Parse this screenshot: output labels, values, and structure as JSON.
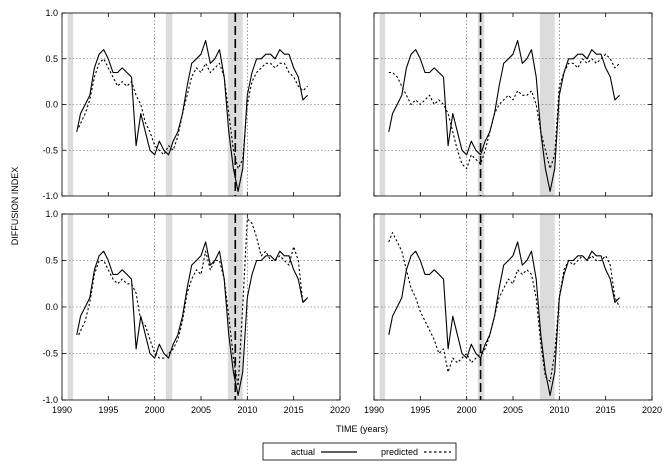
{
  "figure": {
    "xlabel": "TIME (years)",
    "ylabel": "DIFFUSION INDEX",
    "legend": {
      "actual": "actual",
      "predicted": "predicted"
    }
  },
  "chart_data": [
    {
      "panel": "top-left",
      "type": "line",
      "xlim": [
        1990,
        2020
      ],
      "ylim": [
        -1.0,
        1.0
      ],
      "xticks": [
        1990,
        1995,
        2000,
        2005,
        2010,
        2015,
        2020
      ],
      "yticks": [
        -1.0,
        -0.5,
        0.0,
        0.5,
        1.0
      ],
      "recessions": [
        [
          1990.6,
          1991.2
        ],
        [
          2001.2,
          2001.9
        ],
        [
          2007.9,
          2009.5
        ]
      ],
      "dotted_vlines": [
        2000,
        2010
      ],
      "dashed_vline": 2008.7,
      "grid": "dotted",
      "series": [
        {
          "name": "actual",
          "style": "solid",
          "x": [
            1991.6,
            1992.0,
            1992.5,
            1993.0,
            1993.5,
            1994.0,
            1994.5,
            1995.0,
            1995.5,
            1996.0,
            1996.5,
            1997.0,
            1997.5,
            1998.0,
            1998.5,
            1999.0,
            1999.5,
            2000.0,
            2000.5,
            2001.0,
            2001.5,
            2002.0,
            2002.5,
            2003.0,
            2003.5,
            2004.0,
            2004.5,
            2005.0,
            2005.5,
            2006.0,
            2006.5,
            2007.0,
            2007.5,
            2008.0,
            2008.5,
            2009.0,
            2009.5,
            2010.0,
            2010.5,
            2011.0,
            2011.5,
            2012.0,
            2012.5,
            2013.0,
            2013.5,
            2014.0,
            2014.5,
            2015.0,
            2015.5,
            2016.0,
            2016.5
          ],
          "y": [
            -0.3,
            -0.1,
            0.0,
            0.1,
            0.4,
            0.55,
            0.6,
            0.5,
            0.35,
            0.35,
            0.4,
            0.35,
            0.3,
            -0.45,
            -0.1,
            -0.3,
            -0.5,
            -0.55,
            -0.4,
            -0.5,
            -0.55,
            -0.4,
            -0.3,
            -0.1,
            0.2,
            0.45,
            0.5,
            0.55,
            0.7,
            0.45,
            0.5,
            0.6,
            0.3,
            -0.3,
            -0.7,
            -0.95,
            -0.7,
            0.1,
            0.35,
            0.5,
            0.5,
            0.55,
            0.55,
            0.5,
            0.6,
            0.55,
            0.55,
            0.4,
            0.3,
            0.05,
            0.1
          ]
        },
        {
          "name": "predicted",
          "style": "dashed",
          "x": [
            1991.8,
            1992.5,
            1993.0,
            1993.5,
            1994.0,
            1994.5,
            1995.0,
            1995.5,
            1996.0,
            1996.5,
            1997.0,
            1997.5,
            1998.0,
            1998.5,
            1999.0,
            1999.5,
            2000.0,
            2000.5,
            2001.0,
            2001.5,
            2002.0,
            2002.5,
            2003.0,
            2003.5,
            2004.0,
            2004.5,
            2005.0,
            2005.5,
            2006.0,
            2006.5,
            2007.0,
            2007.5,
            2008.0,
            2008.5,
            2009.0,
            2009.5,
            2010.0,
            2010.5,
            2011.0,
            2011.5,
            2012.0,
            2012.5,
            2013.0,
            2013.5,
            2014.0,
            2014.5,
            2015.0,
            2015.5,
            2016.0,
            2016.5
          ],
          "y": [
            -0.25,
            -0.1,
            0.05,
            0.3,
            0.45,
            0.5,
            0.4,
            0.3,
            0.2,
            0.25,
            0.2,
            0.25,
            0.1,
            0.0,
            -0.2,
            -0.3,
            -0.45,
            -0.5,
            -0.55,
            -0.45,
            -0.5,
            -0.35,
            -0.1,
            0.1,
            0.3,
            0.4,
            0.35,
            0.45,
            0.35,
            0.4,
            0.45,
            0.3,
            -0.1,
            -0.5,
            -0.7,
            -0.6,
            0.0,
            0.25,
            0.35,
            0.4,
            0.45,
            0.45,
            0.4,
            0.45,
            0.45,
            0.35,
            0.3,
            0.2,
            0.15,
            0.2
          ]
        }
      ]
    },
    {
      "panel": "top-right",
      "type": "line",
      "xlim": [
        1990,
        2020
      ],
      "ylim": [
        -1.0,
        1.0
      ],
      "xticks": [
        1990,
        1995,
        2000,
        2005,
        2010,
        2015,
        2020
      ],
      "yticks": [
        -1.0,
        -0.5,
        0.0,
        0.5,
        1.0
      ],
      "recessions": [
        [
          1990.6,
          1991.2
        ],
        [
          2001.2,
          2001.9
        ],
        [
          2007.9,
          2009.5
        ]
      ],
      "dotted_vlines": [
        2000,
        2010
      ],
      "dashed_vline": 2001.5,
      "grid": "dotted",
      "series": [
        {
          "name": "actual",
          "style": "solid",
          "x": [
            1991.6,
            1992.0,
            1992.5,
            1993.0,
            1993.5,
            1994.0,
            1994.5,
            1995.0,
            1995.5,
            1996.0,
            1996.5,
            1997.0,
            1997.5,
            1998.0,
            1998.5,
            1999.0,
            1999.5,
            2000.0,
            2000.5,
            2001.0,
            2001.5,
            2002.0,
            2002.5,
            2003.0,
            2003.5,
            2004.0,
            2004.5,
            2005.0,
            2005.5,
            2006.0,
            2006.5,
            2007.0,
            2007.5,
            2008.0,
            2008.5,
            2009.0,
            2009.5,
            2010.0,
            2010.5,
            2011.0,
            2011.5,
            2012.0,
            2012.5,
            2013.0,
            2013.5,
            2014.0,
            2014.5,
            2015.0,
            2015.5,
            2016.0,
            2016.5
          ],
          "y": [
            -0.3,
            -0.1,
            0.0,
            0.1,
            0.4,
            0.55,
            0.6,
            0.5,
            0.35,
            0.35,
            0.4,
            0.35,
            0.3,
            -0.45,
            -0.1,
            -0.3,
            -0.5,
            -0.55,
            -0.4,
            -0.5,
            -0.55,
            -0.4,
            -0.3,
            -0.1,
            0.2,
            0.45,
            0.5,
            0.55,
            0.7,
            0.45,
            0.5,
            0.6,
            0.3,
            -0.3,
            -0.7,
            -0.95,
            -0.7,
            0.1,
            0.35,
            0.5,
            0.5,
            0.55,
            0.55,
            0.5,
            0.6,
            0.55,
            0.55,
            0.4,
            0.3,
            0.05,
            0.1
          ]
        },
        {
          "name": "predicted",
          "style": "dashed",
          "x": [
            1991.6,
            1992.0,
            1992.5,
            1993.0,
            1993.5,
            1994.0,
            1994.5,
            1995.0,
            1995.5,
            1996.0,
            1996.5,
            1997.0,
            1997.5,
            1998.0,
            1998.5,
            1999.0,
            1999.5,
            2000.0,
            2000.5,
            2001.0,
            2001.5,
            2002.0,
            2002.5,
            2003.0,
            2003.5,
            2004.0,
            2004.5,
            2005.0,
            2005.5,
            2006.0,
            2006.5,
            2007.0,
            2007.5,
            2008.0,
            2008.5,
            2009.0,
            2009.5,
            2010.0,
            2010.5,
            2011.0,
            2011.5,
            2012.0,
            2012.5,
            2013.0,
            2013.5,
            2014.0,
            2014.5,
            2015.0,
            2015.5,
            2016.0,
            2016.5
          ],
          "y": [
            0.35,
            0.35,
            0.3,
            0.2,
            0.1,
            0.0,
            0.05,
            0.0,
            0.05,
            0.1,
            0.0,
            0.05,
            0.0,
            -0.1,
            -0.3,
            -0.5,
            -0.65,
            -0.7,
            -0.55,
            -0.6,
            -0.65,
            -0.5,
            -0.3,
            -0.1,
            0.0,
            0.05,
            0.1,
            0.05,
            0.15,
            0.1,
            0.1,
            0.15,
            0.0,
            -0.3,
            -0.5,
            -0.7,
            -0.55,
            0.2,
            0.35,
            0.45,
            0.45,
            0.4,
            0.5,
            0.45,
            0.5,
            0.45,
            0.5,
            0.55,
            0.5,
            0.4,
            0.45
          ]
        }
      ]
    },
    {
      "panel": "bottom-left",
      "type": "line",
      "xlim": [
        1990,
        2020
      ],
      "ylim": [
        -1.0,
        1.0
      ],
      "xticks": [
        1990,
        1995,
        2000,
        2005,
        2010,
        2015,
        2020
      ],
      "yticks": [
        -1.0,
        -0.5,
        0.0,
        0.5,
        1.0
      ],
      "recessions": [
        [
          1990.6,
          1991.2
        ],
        [
          2001.2,
          2001.9
        ],
        [
          2007.9,
          2009.5
        ]
      ],
      "dotted_vlines": [
        2000,
        2010
      ],
      "dashed_vline": 2008.7,
      "grid": "dotted",
      "series": [
        {
          "name": "actual",
          "style": "solid",
          "x": [
            1991.6,
            1992.0,
            1992.5,
            1993.0,
            1993.5,
            1994.0,
            1994.5,
            1995.0,
            1995.5,
            1996.0,
            1996.5,
            1997.0,
            1997.5,
            1998.0,
            1998.5,
            1999.0,
            1999.5,
            2000.0,
            2000.5,
            2001.0,
            2001.5,
            2002.0,
            2002.5,
            2003.0,
            2003.5,
            2004.0,
            2004.5,
            2005.0,
            2005.5,
            2006.0,
            2006.5,
            2007.0,
            2007.5,
            2008.0,
            2008.5,
            2009.0,
            2009.5,
            2010.0,
            2010.5,
            2011.0,
            2011.5,
            2012.0,
            2012.5,
            2013.0,
            2013.5,
            2014.0,
            2014.5,
            2015.0,
            2015.5,
            2016.0,
            2016.5
          ],
          "y": [
            -0.3,
            -0.1,
            0.0,
            0.1,
            0.4,
            0.55,
            0.6,
            0.5,
            0.35,
            0.35,
            0.4,
            0.35,
            0.3,
            -0.45,
            -0.1,
            -0.3,
            -0.5,
            -0.55,
            -0.4,
            -0.5,
            -0.55,
            -0.4,
            -0.3,
            -0.1,
            0.2,
            0.45,
            0.5,
            0.55,
            0.7,
            0.45,
            0.5,
            0.6,
            0.3,
            -0.3,
            -0.7,
            -0.95,
            -0.7,
            0.1,
            0.35,
            0.5,
            0.5,
            0.55,
            0.55,
            0.5,
            0.6,
            0.55,
            0.55,
            0.4,
            0.3,
            0.05,
            0.1
          ]
        },
        {
          "name": "predicted",
          "style": "dashed",
          "x": [
            1991.8,
            1992.5,
            1993.0,
            1993.5,
            1994.0,
            1994.5,
            1995.0,
            1995.5,
            1996.0,
            1996.5,
            1997.0,
            1997.5,
            1998.0,
            1998.5,
            1999.0,
            1999.5,
            2000.0,
            2000.5,
            2001.0,
            2001.5,
            2002.0,
            2002.5,
            2003.0,
            2003.5,
            2004.0,
            2004.5,
            2005.0,
            2005.5,
            2006.0,
            2006.5,
            2007.0,
            2007.5,
            2008.0,
            2008.5,
            2009.0,
            2009.5,
            2010.0,
            2010.5,
            2011.0,
            2011.5,
            2012.0,
            2012.5,
            2013.0,
            2013.5,
            2014.0,
            2014.5,
            2015.0,
            2015.5,
            2016.0,
            2016.5
          ],
          "y": [
            -0.3,
            -0.15,
            0.05,
            0.35,
            0.5,
            0.5,
            0.4,
            0.3,
            0.25,
            0.3,
            0.25,
            0.25,
            0.15,
            -0.15,
            -0.2,
            -0.35,
            -0.5,
            -0.55,
            -0.55,
            -0.5,
            -0.45,
            -0.35,
            -0.15,
            0.15,
            0.3,
            0.4,
            0.35,
            0.6,
            0.4,
            0.5,
            0.5,
            0.3,
            -0.1,
            -0.55,
            -0.85,
            0.0,
            0.95,
            0.9,
            0.75,
            0.55,
            0.6,
            0.5,
            0.5,
            0.55,
            0.5,
            0.45,
            0.65,
            0.5,
            0.05,
            0.1
          ]
        }
      ]
    },
    {
      "panel": "bottom-right",
      "type": "line",
      "xlim": [
        1990,
        2020
      ],
      "ylim": [
        -1.0,
        1.0
      ],
      "xticks": [
        1990,
        1995,
        2000,
        2005,
        2010,
        2015,
        2020
      ],
      "yticks": [
        -1.0,
        -0.5,
        0.0,
        0.5,
        1.0
      ],
      "recessions": [
        [
          1990.6,
          1991.2
        ],
        [
          2001.2,
          2001.9
        ],
        [
          2007.9,
          2009.5
        ]
      ],
      "dotted_vlines": [
        2000,
        2010
      ],
      "dashed_vline": 2001.5,
      "grid": "dotted",
      "series": [
        {
          "name": "actual",
          "style": "solid",
          "x": [
            1991.6,
            1992.0,
            1992.5,
            1993.0,
            1993.5,
            1994.0,
            1994.5,
            1995.0,
            1995.5,
            1996.0,
            1996.5,
            1997.0,
            1997.5,
            1998.0,
            1998.5,
            1999.0,
            1999.5,
            2000.0,
            2000.5,
            2001.0,
            2001.5,
            2002.0,
            2002.5,
            2003.0,
            2003.5,
            2004.0,
            2004.5,
            2005.0,
            2005.5,
            2006.0,
            2006.5,
            2007.0,
            2007.5,
            2008.0,
            2008.5,
            2009.0,
            2009.5,
            2010.0,
            2010.5,
            2011.0,
            2011.5,
            2012.0,
            2012.5,
            2013.0,
            2013.5,
            2014.0,
            2014.5,
            2015.0,
            2015.5,
            2016.0,
            2016.5
          ],
          "y": [
            -0.3,
            -0.1,
            0.0,
            0.1,
            0.4,
            0.55,
            0.6,
            0.5,
            0.35,
            0.35,
            0.4,
            0.35,
            0.3,
            -0.45,
            -0.1,
            -0.3,
            -0.5,
            -0.55,
            -0.4,
            -0.5,
            -0.55,
            -0.4,
            -0.3,
            -0.1,
            0.2,
            0.45,
            0.5,
            0.55,
            0.7,
            0.45,
            0.5,
            0.6,
            0.3,
            -0.3,
            -0.7,
            -0.95,
            -0.7,
            0.1,
            0.35,
            0.5,
            0.5,
            0.55,
            0.55,
            0.5,
            0.6,
            0.55,
            0.55,
            0.4,
            0.3,
            0.05,
            0.1
          ]
        },
        {
          "name": "predicted",
          "style": "dashed",
          "x": [
            1991.6,
            1992.0,
            1992.5,
            1993.0,
            1993.5,
            1994.0,
            1994.5,
            1995.0,
            1995.5,
            1996.0,
            1996.5,
            1997.0,
            1997.5,
            1998.0,
            1998.5,
            1999.0,
            1999.5,
            2000.0,
            2000.5,
            2001.0,
            2001.5,
            2002.0,
            2002.5,
            2003.0,
            2003.5,
            2004.0,
            2004.5,
            2005.0,
            2005.5,
            2006.0,
            2006.5,
            2007.0,
            2007.5,
            2008.0,
            2008.5,
            2009.0,
            2009.5,
            2010.0,
            2010.5,
            2011.0,
            2011.5,
            2012.0,
            2012.5,
            2013.0,
            2013.5,
            2014.0,
            2014.5,
            2015.0,
            2015.5,
            2016.0,
            2016.5
          ],
          "y": [
            0.7,
            0.8,
            0.7,
            0.6,
            0.4,
            0.2,
            0.1,
            -0.05,
            -0.15,
            -0.25,
            -0.35,
            -0.5,
            -0.45,
            -0.7,
            -0.55,
            -0.6,
            -0.55,
            -0.5,
            -0.6,
            -0.55,
            -0.5,
            -0.45,
            -0.3,
            -0.1,
            0.1,
            0.2,
            0.3,
            0.25,
            0.4,
            0.35,
            0.4,
            0.35,
            0.1,
            -0.4,
            -0.75,
            -0.8,
            -0.5,
            0.1,
            0.4,
            0.5,
            0.45,
            0.5,
            0.55,
            0.5,
            0.55,
            0.5,
            0.5,
            0.55,
            0.45,
            0.1,
            0.0
          ]
        }
      ]
    }
  ]
}
